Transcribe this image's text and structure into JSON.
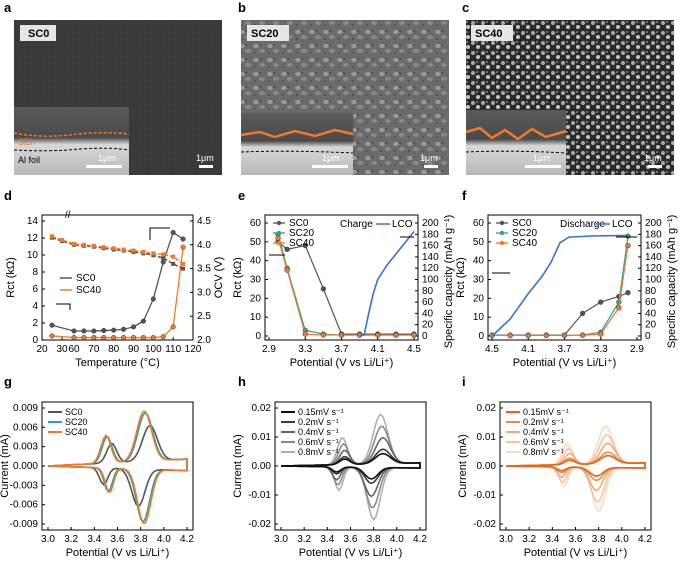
{
  "panel_labels": [
    "a",
    "b",
    "c",
    "d",
    "e",
    "f",
    "g",
    "h",
    "i"
  ],
  "sem": [
    {
      "label": "SC0",
      "scale": "1μm",
      "inset_scale": "1μm",
      "sei": "SEI",
      "foil": "Al foil"
    },
    {
      "label": "SC20",
      "scale": "1μm",
      "inset_scale": "1μm"
    },
    {
      "label": "SC40",
      "scale": "1μm",
      "inset_scale": "1μm"
    }
  ],
  "colors": {
    "sc0": "#555555",
    "sc20": "#2aa39a",
    "sc40": "#f07a2a",
    "lco": "#3b6fd9"
  },
  "chart_data": [
    {
      "panel": "d",
      "type": "line",
      "xlabel": "Temperature (°C)",
      "ylabel": "Rct (kΩ)",
      "y2label": "OCV (V)",
      "x_ticks": [
        "20",
        "30",
        "60",
        "70",
        "80",
        "90",
        "100",
        "110",
        "120"
      ],
      "y_ticks": [
        "0",
        "2",
        "4",
        "6",
        "8",
        "10",
        "12",
        "14"
      ],
      "y2_ticks": [
        "2.0",
        "2.5",
        "3.0",
        "3.5",
        "4.0",
        "4.5"
      ],
      "ylim": [
        0,
        14.5
      ],
      "y2lim": [
        2.0,
        4.5
      ],
      "series": [
        {
          "name": "SC0",
          "axis": "left",
          "x": [
            25,
            60,
            65,
            70,
            75,
            80,
            85,
            90,
            95,
            100,
            105,
            110,
            115
          ],
          "y": [
            1.8,
            1.1,
            1.1,
            1.1,
            1.15,
            1.2,
            1.3,
            1.6,
            2.3,
            5.0,
            9.5,
            13.1,
            12.3
          ]
        },
        {
          "name": "SC40",
          "axis": "left",
          "x": [
            25,
            60,
            65,
            70,
            75,
            80,
            85,
            90,
            95,
            100,
            105,
            110,
            115
          ],
          "y": [
            0.5,
            0.3,
            0.3,
            0.3,
            0.3,
            0.3,
            0.3,
            0.3,
            0.3,
            0.3,
            0.4,
            1.6,
            11.3
          ]
        },
        {
          "name": "SC0 OCV",
          "axis": "right",
          "x": [
            25,
            30,
            60,
            65,
            70,
            75,
            80,
            85,
            90,
            95,
            100,
            105,
            110,
            115
          ],
          "y": [
            4.15,
            4.08,
            4.0,
            3.98,
            3.96,
            3.93,
            3.9,
            3.88,
            3.85,
            3.82,
            3.78,
            3.72,
            3.6,
            3.5
          ]
        },
        {
          "name": "SC40 OCV",
          "axis": "right",
          "x": [
            25,
            30,
            60,
            65,
            70,
            75,
            80,
            85,
            90,
            95,
            100,
            105,
            110,
            115
          ],
          "y": [
            4.18,
            4.1,
            4.02,
            4.0,
            3.98,
            3.95,
            3.93,
            3.9,
            3.88,
            3.85,
            3.82,
            3.8,
            3.75,
            3.6
          ]
        }
      ],
      "legend": [
        "SC0",
        "SC40"
      ]
    },
    {
      "panel": "e",
      "type": "line",
      "xlabel": "Potential (V vs Li/Li⁺)",
      "ylabel": "Rct (kΩ)",
      "y2label": "Specific capacity (mAh g⁻¹)",
      "x_ticks": [
        "2.9",
        "3.3",
        "3.7",
        "4.1",
        "4.5"
      ],
      "y_ticks": [
        "0",
        "10",
        "20",
        "30",
        "40",
        "50",
        "60"
      ],
      "y2_ticks": [
        "0",
        "20",
        "40",
        "60",
        "80",
        "100",
        "120",
        "140",
        "160",
        "180",
        "200"
      ],
      "legend": [
        "SC0",
        "SC20",
        "SC40"
      ],
      "legend2": [
        "Charge",
        "LCO"
      ],
      "series": [
        {
          "name": "SC0",
          "x": [
            3.0,
            3.1,
            3.3,
            3.5,
            3.7,
            3.9,
            4.1,
            4.3,
            4.5
          ],
          "y": [
            50,
            46,
            48,
            25,
            1,
            1,
            1,
            1,
            1
          ]
        },
        {
          "name": "SC20",
          "x": [
            3.0,
            3.1,
            3.3,
            3.5,
            3.7,
            3.9,
            4.1,
            4.3,
            4.5
          ],
          "y": [
            54,
            36,
            3,
            1,
            0.5,
            0.5,
            0.5,
            0.5,
            0.5
          ]
        },
        {
          "name": "SC40",
          "x": [
            3.0,
            3.1,
            3.3,
            3.5,
            3.7,
            3.9,
            4.1,
            4.3,
            4.5
          ],
          "y": [
            52,
            35,
            1,
            0.5,
            0.5,
            0.5,
            0.5,
            0.5,
            0.5
          ]
        },
        {
          "name": "LCO",
          "x": [
            3.9,
            3.95,
            4.0,
            4.05,
            4.1,
            4.2,
            4.3,
            4.4,
            4.5
          ],
          "y": [
            0,
            2,
            40,
            75,
            100,
            125,
            145,
            165,
            185
          ]
        }
      ]
    },
    {
      "panel": "f",
      "type": "line",
      "xlabel": "Potential (V vs Li/Li⁺)",
      "ylabel": "Rct (kΩ)",
      "y2label": "Specific capacity (mAh g⁻¹)",
      "x_ticks": [
        "4.5",
        "4.1",
        "3.7",
        "3.3",
        "2.9"
      ],
      "y_ticks": [
        "0",
        "10",
        "20",
        "30",
        "40",
        "50",
        "60"
      ],
      "y2_ticks": [
        "0",
        "20",
        "40",
        "60",
        "80",
        "100",
        "120",
        "140",
        "160",
        "180",
        "200"
      ],
      "legend": [
        "SC0",
        "SC20",
        "SC40"
      ],
      "legend2": [
        "Discharge",
        "LCO"
      ],
      "series": [
        {
          "name": "SC0",
          "x": [
            4.5,
            4.3,
            4.1,
            3.9,
            3.7,
            3.5,
            3.3,
            3.1,
            3.0
          ],
          "y": [
            0.5,
            0.5,
            0.5,
            0.5,
            0.5,
            12,
            18,
            21,
            23
          ]
        },
        {
          "name": "SC20",
          "x": [
            4.5,
            4.3,
            4.1,
            3.9,
            3.7,
            3.5,
            3.3,
            3.1,
            3.0
          ],
          "y": [
            0.3,
            0.3,
            0.3,
            0.3,
            0.3,
            0.5,
            2,
            18,
            53
          ]
        },
        {
          "name": "SC40",
          "x": [
            4.5,
            4.3,
            4.1,
            3.9,
            3.7,
            3.5,
            3.3,
            3.1,
            3.0
          ],
          "y": [
            0.3,
            0.3,
            0.3,
            0.3,
            0.3,
            0.4,
            1,
            15,
            48
          ]
        },
        {
          "name": "LCO",
          "x": [
            4.5,
            4.3,
            4.1,
            3.95,
            3.85,
            3.75,
            3.65,
            3.4,
            3.0
          ],
          "y": [
            0,
            30,
            75,
            105,
            130,
            165,
            175,
            177,
            178
          ]
        }
      ]
    },
    {
      "panel": "g",
      "type": "line",
      "xlabel": "Potential (V vs Li/Li⁺)",
      "ylabel": "Current (mA)",
      "x_ticks": [
        "3.0",
        "3.2",
        "3.4",
        "3.6",
        "3.8",
        "4.0",
        "4.2"
      ],
      "y_ticks": [
        "-0.009",
        "-0.006",
        "-0.003",
        "0.000",
        "0.003",
        "0.006",
        "0.009"
      ],
      "legend": [
        "SC0",
        "SC20",
        "SC40"
      ]
    },
    {
      "panel": "h",
      "type": "line",
      "xlabel": "Potential (V vs Li/Li⁺)",
      "ylabel": "Current (mA)",
      "x_ticks": [
        "3.0",
        "3.2",
        "3.4",
        "3.6",
        "3.8",
        "4.0",
        "4.2"
      ],
      "y_ticks": [
        "-0.02",
        "-0.01",
        "0.00",
        "0.01",
        "0.02"
      ],
      "legend": [
        "0.15mV s⁻¹",
        "0.2mV s⁻¹",
        "0.4mV s⁻¹",
        "0.6mV s⁻¹",
        "0.8mV s⁻¹"
      ]
    },
    {
      "panel": "i",
      "type": "line",
      "xlabel": "Potential (V vs Li/Li⁺)",
      "ylabel": "Current (mA)",
      "x_ticks": [
        "3.0",
        "3.2",
        "3.4",
        "3.6",
        "3.8",
        "4.0",
        "4.2"
      ],
      "y_ticks": [
        "-0.02",
        "-0.01",
        "0.00",
        "0.01",
        "0.02"
      ],
      "legend": [
        "0.15mV s⁻¹",
        "0.2mV s⁻¹",
        "0.4mV s⁻¹",
        "0.6mV s⁻¹",
        "0.8mV s⁻¹"
      ]
    }
  ]
}
